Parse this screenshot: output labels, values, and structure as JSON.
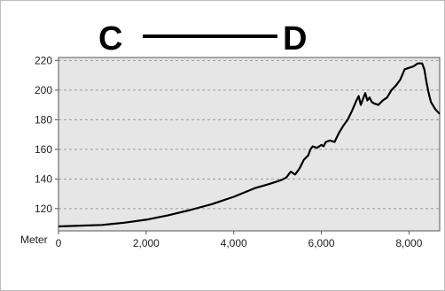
{
  "chart_data": {
    "type": "line",
    "title_left": "C",
    "title_right": "D",
    "unit_label": "Meter",
    "xlim": [
      0,
      8700
    ],
    "ylim": [
      105,
      222
    ],
    "x_ticks": [
      0,
      2000,
      4000,
      6000,
      8000
    ],
    "x_tick_labels": [
      "0",
      "2,000",
      "4,000",
      "6,000",
      "8,000"
    ],
    "y_ticks": [
      120,
      140,
      160,
      180,
      200,
      220
    ],
    "y_tick_labels": [
      "120",
      "140",
      "160",
      "180",
      "200",
      "220"
    ],
    "grid": "horizontal dashed",
    "colors": {
      "plot_bg": "#e6e6e6",
      "line": "#000000",
      "grid": "#9a9a9a"
    },
    "series": [
      {
        "x": [
          0,
          500,
          1000,
          1500,
          2000,
          2500,
          3000,
          3500,
          4000,
          4500,
          4800,
          5000,
          5100,
          5200,
          5300,
          5400,
          5500,
          5600,
          5700,
          5750,
          5800,
          5900,
          6000,
          6050,
          6100,
          6200,
          6300,
          6400,
          6500,
          6600,
          6700,
          6800,
          6850,
          6900,
          6950,
          7000,
          7050,
          7100,
          7150,
          7200,
          7300,
          7400,
          7500,
          7600,
          7700,
          7800,
          7900,
          8000,
          8100,
          8200,
          8300,
          8350,
          8400,
          8450,
          8500,
          8600,
          8700
        ],
        "y": [
          108,
          108.5,
          109,
          110.5,
          112.5,
          115.5,
          119,
          123,
          128,
          134,
          136.5,
          138.5,
          139.5,
          141,
          145,
          143,
          147,
          153,
          156,
          160,
          162,
          161,
          163,
          162,
          165,
          166,
          165,
          171,
          176,
          180,
          186,
          193,
          196,
          190,
          194,
          198,
          193,
          195,
          192,
          191,
          190,
          193,
          195,
          200,
          203,
          207,
          214,
          215,
          216,
          218,
          218,
          214,
          205,
          198,
          192,
          187,
          184
        ]
      }
    ]
  }
}
